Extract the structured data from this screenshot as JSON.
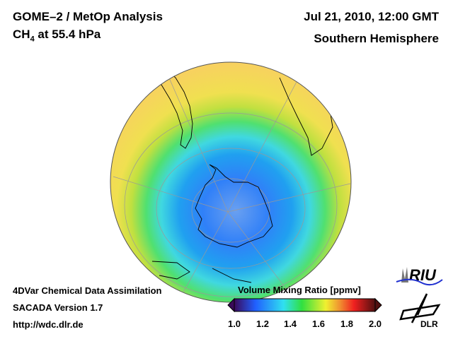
{
  "header": {
    "title": "GOME–2 / MetOp Analysis",
    "species": "CH",
    "species_sub": "4",
    "level": " at 55.4 hPa",
    "date": "Jul 21, 2010, 12:00 GMT",
    "hemisphere": "Southern Hemisphere"
  },
  "footer": {
    "line1": "4DVar Chemical Data Assimilation",
    "line2": "SACADA Version 1.7",
    "line3": "http://wdc.dlr.de"
  },
  "colorbar": {
    "title": "Volume Mixing Ratio [ppmv]",
    "ticks": [
      "1.0",
      "1.2",
      "1.4",
      "1.6",
      "1.8",
      "2.0"
    ],
    "range": [
      1.0,
      2.0
    ],
    "colors": [
      "#3a0a5a",
      "#2060ff",
      "#30e0f0",
      "#30e040",
      "#f0f030",
      "#f09030",
      "#f02020",
      "#501010"
    ]
  },
  "logos": {
    "riu": "RIU",
    "dlr": "DLR"
  }
}
